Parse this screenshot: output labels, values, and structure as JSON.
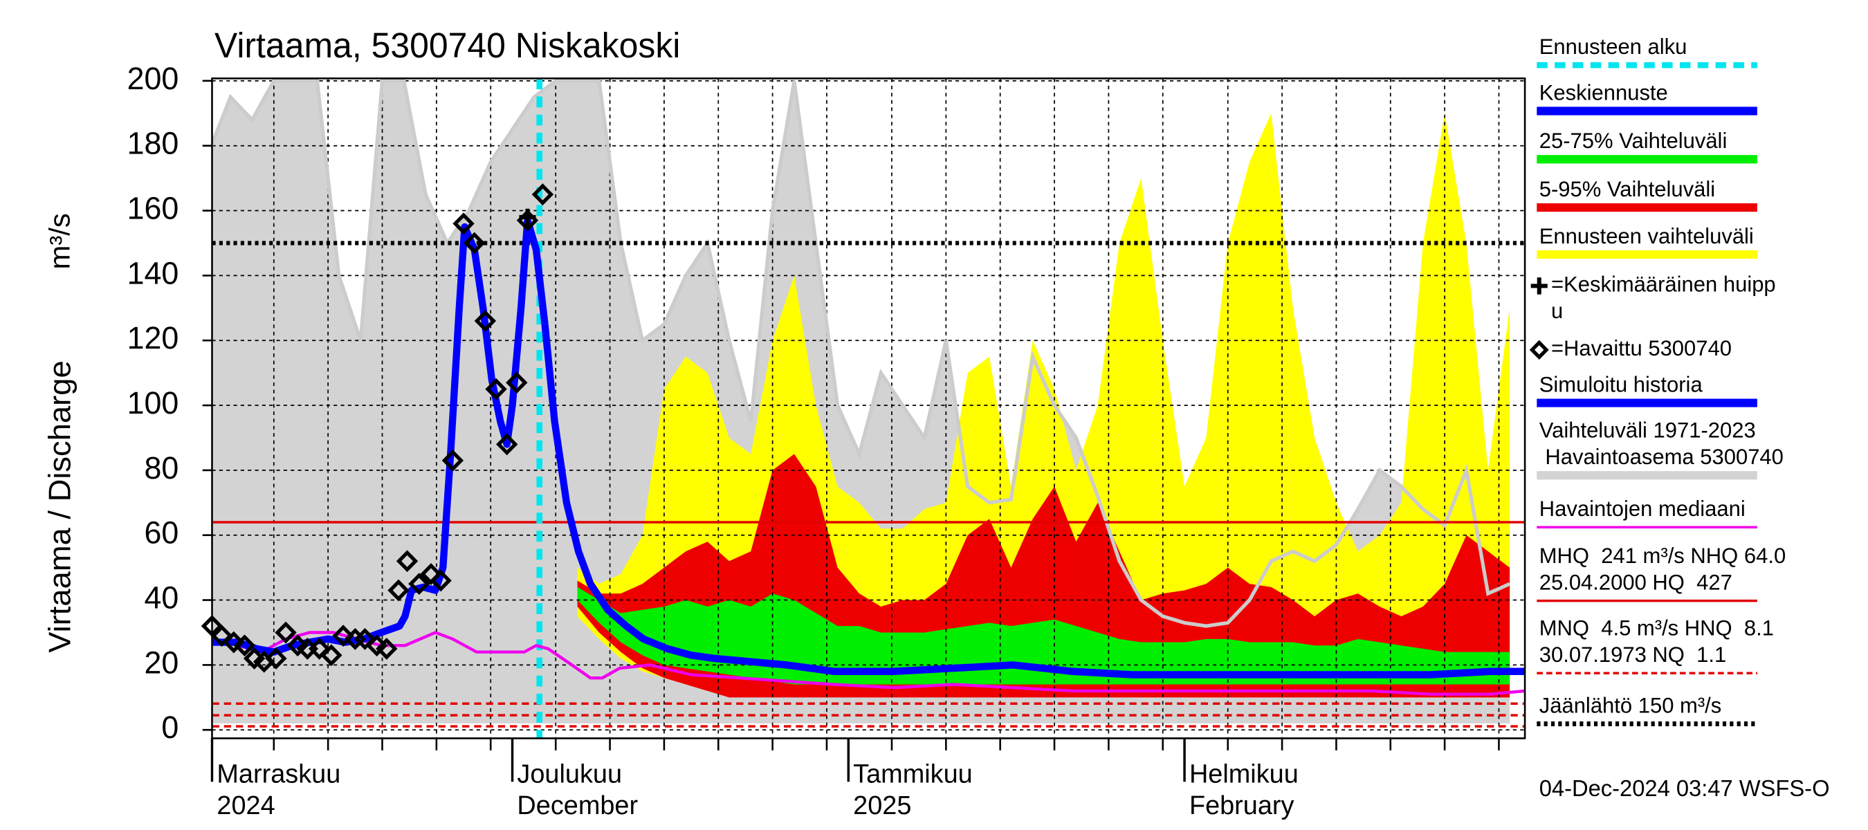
{
  "chart_data": {
    "type": "hydrograph",
    "title": "Virtaama, 5300740 Niskakoski",
    "y_label": "Virtaama / Discharge",
    "y_unit": "m³/s",
    "footer": "04-Dec-2024 03:47 WSFS-O",
    "ylim": [
      0,
      200
    ],
    "yticks": [
      0,
      20,
      40,
      60,
      80,
      100,
      120,
      140,
      160,
      180,
      200
    ],
    "xlim": [
      2.3,
      123.4
    ],
    "xticks": [
      {
        "value": 2.3,
        "label": "Marraskuu",
        "sublabel": "2024"
      },
      {
        "value": 30,
        "label": "Joulukuu",
        "sublabel": "December"
      },
      {
        "value": 61,
        "label": "Tammikuu",
        "sublabel": "2025"
      },
      {
        "value": 92,
        "label": "Helmikuu",
        "sublabel": "February"
      }
    ],
    "xgrid": [
      8,
      13,
      18,
      23,
      28,
      34,
      39,
      44,
      49,
      54,
      59,
      65,
      70,
      75,
      80,
      85,
      90,
      96,
      101,
      106,
      111,
      116,
      121
    ],
    "grid": true,
    "forecast_start": 32.5,
    "forecast_start_color": "#00e5ee",
    "bands": [
      {
        "color": "#d3d3d3",
        "edge_color": "#cccccc",
        "x": [
          2,
          4,
          6,
          8,
          10,
          12,
          14,
          16,
          18,
          20,
          22,
          24,
          26,
          28,
          30,
          32,
          34,
          36,
          38,
          40,
          42,
          44,
          46,
          48,
          50,
          52,
          54,
          56,
          58,
          60,
          62,
          64,
          66,
          68,
          70,
          72,
          74,
          76,
          78,
          80,
          82,
          84,
          86,
          88,
          90,
          92,
          94,
          96,
          98,
          100,
          102,
          104,
          106,
          108,
          110,
          112,
          114,
          116,
          118,
          120,
          122
        ],
        "high": [
          178,
          195,
          188,
          200,
          200,
          200,
          140,
          120,
          200,
          200,
          165,
          150,
          160,
          175,
          185,
          195,
          200,
          200,
          200,
          150,
          120,
          125,
          140,
          150,
          120,
          95,
          160,
          200,
          150,
          100,
          85,
          110,
          100,
          90,
          120,
          75,
          70,
          71,
          115,
          100,
          90,
          72,
          52,
          40,
          35,
          33,
          32,
          33,
          40,
          52,
          55,
          52,
          57,
          68,
          80,
          75,
          68,
          63,
          80,
          42,
          45
        ],
        "low": [
          2,
          2,
          2,
          2,
          2,
          2,
          2,
          2,
          2,
          2,
          2,
          2,
          2,
          2,
          2,
          2,
          2,
          2,
          2,
          2,
          2,
          2,
          2,
          2,
          2,
          2,
          2,
          2,
          2,
          2,
          2,
          2,
          2,
          2,
          2,
          2,
          2,
          2,
          2,
          2,
          2,
          2,
          2,
          2,
          2,
          2,
          2,
          2,
          2,
          2,
          2,
          2,
          2,
          2,
          2,
          2,
          2,
          2,
          2,
          2,
          2
        ]
      },
      {
        "color": "#ffff00",
        "x": [
          36,
          38,
          40,
          42,
          44,
          46,
          48,
          50,
          52,
          54,
          56,
          58,
          60,
          62,
          64,
          66,
          68,
          70,
          72,
          74,
          76,
          78,
          80,
          82,
          84,
          86,
          88,
          90,
          92,
          94,
          96,
          98,
          100,
          102,
          104,
          106,
          108,
          110,
          112,
          114,
          116,
          118,
          120,
          122
        ],
        "high": [
          50,
          45,
          48,
          60,
          105,
          115,
          110,
          90,
          85,
          120,
          140,
          100,
          75,
          70,
          62,
          62,
          68,
          70,
          110,
          115,
          75,
          120,
          105,
          80,
          100,
          150,
          170,
          120,
          75,
          90,
          150,
          175,
          190,
          130,
          90,
          70,
          55,
          60,
          70,
          150,
          190,
          150,
          80,
          130
        ],
        "low": [
          35,
          28,
          22,
          18,
          16,
          14,
          12,
          12,
          12,
          12,
          12,
          12,
          12,
          12,
          12,
          12,
          12,
          12,
          12,
          12,
          12,
          12,
          12,
          12,
          12,
          12,
          12,
          12,
          12,
          12,
          12,
          12,
          12,
          12,
          12,
          12,
          12,
          12,
          12,
          12,
          12,
          12,
          12,
          12
        ]
      },
      {
        "color": "#ee0000",
        "x": [
          36,
          38,
          40,
          42,
          44,
          46,
          48,
          50,
          52,
          54,
          56,
          58,
          60,
          62,
          64,
          66,
          68,
          70,
          72,
          74,
          76,
          78,
          80,
          82,
          84,
          86,
          88,
          90,
          92,
          94,
          96,
          98,
          100,
          102,
          104,
          106,
          108,
          110,
          112,
          114,
          116,
          118,
          120,
          122
        ],
        "high": [
          46,
          42,
          42,
          45,
          50,
          55,
          58,
          52,
          55,
          80,
          85,
          75,
          50,
          42,
          38,
          40,
          40,
          45,
          60,
          65,
          50,
          65,
          75,
          58,
          70,
          55,
          40,
          42,
          43,
          45,
          50,
          45,
          44,
          40,
          35,
          40,
          42,
          38,
          35,
          38,
          45,
          60,
          55,
          50
        ],
        "low": [
          38,
          30,
          24,
          19,
          16,
          14,
          12,
          10,
          10,
          10,
          10,
          10,
          10,
          10,
          10,
          10,
          10,
          10,
          10,
          10,
          10,
          10,
          10,
          10,
          10,
          10,
          10,
          10,
          10,
          10,
          10,
          10,
          10,
          10,
          10,
          10,
          10,
          10,
          10,
          10,
          10,
          10,
          10,
          10
        ]
      },
      {
        "color": "#00ee00",
        "x": [
          36,
          38,
          40,
          42,
          44,
          46,
          48,
          50,
          52,
          54,
          56,
          58,
          60,
          62,
          64,
          66,
          68,
          70,
          72,
          74,
          76,
          78,
          80,
          82,
          84,
          86,
          88,
          90,
          92,
          94,
          96,
          98,
          100,
          102,
          104,
          106,
          108,
          110,
          112,
          114,
          116,
          118,
          120,
          122
        ],
        "high": [
          44,
          40,
          36,
          37,
          38,
          40,
          38,
          40,
          38,
          42,
          40,
          36,
          32,
          32,
          30,
          30,
          30,
          31,
          32,
          33,
          32,
          33,
          34,
          32,
          30,
          28,
          27,
          27,
          27,
          28,
          28,
          27,
          27,
          27,
          26,
          26,
          28,
          27,
          26,
          25,
          24,
          24,
          24,
          24
        ],
        "low": [
          40,
          33,
          27,
          23,
          20,
          19,
          18,
          17,
          16,
          15,
          14,
          14,
          14,
          14,
          14,
          14,
          14,
          14,
          14,
          14,
          14,
          14,
          14,
          14,
          14,
          14,
          14,
          14,
          14,
          14,
          14,
          14,
          14,
          14,
          14,
          14,
          14,
          14,
          14,
          14,
          14,
          14,
          14,
          14
        ]
      }
    ],
    "ref_lines": [
      {
        "value": 64,
        "color": "#e00000",
        "style": "solid"
      },
      {
        "value": 150,
        "color": "#000000",
        "style": "dotted"
      },
      {
        "value": 8.1,
        "color": "#e00000",
        "style": "dashed"
      },
      {
        "value": 4.5,
        "color": "#e00000",
        "style": "dashed"
      },
      {
        "value": 1.1,
        "color": "#e00000",
        "style": "dashed"
      }
    ],
    "series": [
      {
        "kind": "line",
        "color": "#ee00ee",
        "width": 2.5,
        "x": [
          2.3,
          4.7,
          6.9,
          9.1,
          11.3,
          13.5,
          15.7,
          17.9,
          20.1,
          22.9,
          24.5,
          26.7,
          28.9,
          31.1,
          32.2,
          33.3,
          35.5,
          37.2,
          38.3,
          39.9,
          42.7,
          46.5,
          50.9,
          55.3,
          59.7,
          65.2,
          70.7,
          76.2,
          81.7,
          87.2,
          92.7,
          98.2,
          103.7,
          109.2,
          114.7,
          120.2,
          123.4
        ],
        "values": [
          28,
          26,
          24,
          28,
          30,
          30,
          28,
          26,
          26,
          30,
          28,
          24,
          24,
          24,
          26,
          25,
          20,
          16,
          16,
          19,
          20,
          17,
          16,
          15,
          14,
          13,
          14,
          13,
          12,
          12,
          12,
          12,
          12,
          12,
          11,
          11,
          12
        ]
      },
      {
        "kind": "line",
        "color": "#0000ff",
        "width": 6,
        "x": [
          2.3,
          4.7,
          6.4,
          8.0,
          9.7,
          11.3,
          13.0,
          14.6,
          16.3,
          17.9,
          19.6,
          20.1,
          20.7,
          21.8,
          22.9,
          23.6,
          24.3,
          25.1,
          25.6,
          26.5,
          27.3,
          28.1,
          28.9,
          29.5,
          30.0,
          30.8,
          31.4,
          32.2,
          33.0
        ],
        "values": [
          27,
          27,
          25,
          24,
          26,
          27,
          28,
          27,
          28,
          30,
          32,
          35,
          43,
          44,
          43,
          50,
          85,
          130,
          155,
          148,
          130,
          108,
          95,
          88,
          100,
          130,
          157,
          148,
          125
        ]
      },
      {
        "kind": "line",
        "color": "#0000ff",
        "width": 6,
        "x": [
          33.0,
          33.9,
          35.0,
          36.1,
          37.2,
          38.8,
          40.5,
          42.1,
          44.3,
          46.5,
          48.7,
          52.0,
          55.3,
          59.7,
          65.2,
          70.7,
          76.2,
          81.7,
          87.2,
          92.7,
          98.2,
          103.7,
          109.2,
          114.7,
          120.2,
          123.4
        ],
        "values": [
          125,
          95,
          70,
          55,
          45,
          37,
          32,
          28,
          25,
          23,
          22,
          21,
          20,
          18,
          18,
          19,
          20,
          18,
          17,
          17,
          17,
          17,
          17,
          17,
          18,
          18
        ]
      },
      {
        "kind": "diamond",
        "color": "#000000",
        "x": [
          2.3,
          3.2,
          4.3,
          5.3,
          6.2,
          7.1,
          8.2,
          9.1,
          10.2,
          11.1,
          12.2,
          13.3,
          14.4,
          15.5,
          16.4,
          17.5,
          18.4,
          19.5,
          20.3,
          21.4,
          22.5,
          23.4,
          24.5,
          25.5,
          26.5,
          27.5,
          28.5,
          29.5,
          30.4,
          31.4,
          32.8
        ],
        "values": [
          32,
          29,
          27,
          26,
          22,
          21,
          22,
          30,
          26,
          25,
          25,
          23,
          29,
          28,
          28,
          26,
          25,
          43,
          52,
          45,
          48,
          46,
          83,
          156,
          150,
          126,
          105,
          88,
          107,
          157,
          165
        ]
      },
      {
        "kind": "cross",
        "color": "#000000",
        "x": [
          31.4
        ],
        "values": [
          158
        ]
      }
    ],
    "legend": [
      {
        "kind": "dash",
        "color": "#00e5ee",
        "lines": [
          "Ennusteen alku"
        ]
      },
      {
        "kind": "bar",
        "color": "#0000ff",
        "lines": [
          "Keskiennuste"
        ]
      },
      {
        "kind": "bar",
        "color": "#00ee00",
        "lines": [
          "25-75% Vaihteluväli"
        ]
      },
      {
        "kind": "bar",
        "color": "#ee0000",
        "lines": [
          "5-95% Vaihteluväli"
        ]
      },
      {
        "kind": "bar",
        "color": "#ffff00",
        "lines": [
          "Ennusteen vaihteluväli"
        ]
      },
      {
        "kind": "cross",
        "color": "#000000",
        "lines": [
          "=Keskimääräinen huipp",
          "u"
        ]
      },
      {
        "kind": "diamond",
        "color": "#000000",
        "lines": [
          "=Havaittu 5300740"
        ]
      },
      {
        "kind": "bar",
        "color": "#0000ff",
        "lines": [
          "Simuloitu historia"
        ]
      },
      {
        "kind": "bar",
        "color": "#d3d3d3",
        "lines": [
          "Vaihteluväli 1971-2023",
          " Havaintoasema 5300740"
        ]
      },
      {
        "kind": "thin",
        "color": "#ee00ee",
        "lines": [
          "Havaintojen mediaani"
        ]
      },
      {
        "kind": "thin",
        "color": "#e00000",
        "lines": [
          "MHQ  241 m³/s NHQ 64.0",
          "25.04.2000 HQ  427"
        ]
      },
      {
        "kind": "dashthin",
        "color": "#e00000",
        "lines": [
          "MNQ  4.5 m³/s HNQ  8.1",
          "30.07.1973 NQ  1.1"
        ]
      },
      {
        "kind": "dot",
        "color": "#000000",
        "lines": [
          "Jäänlähtö 150 m³/s"
        ]
      }
    ]
  }
}
